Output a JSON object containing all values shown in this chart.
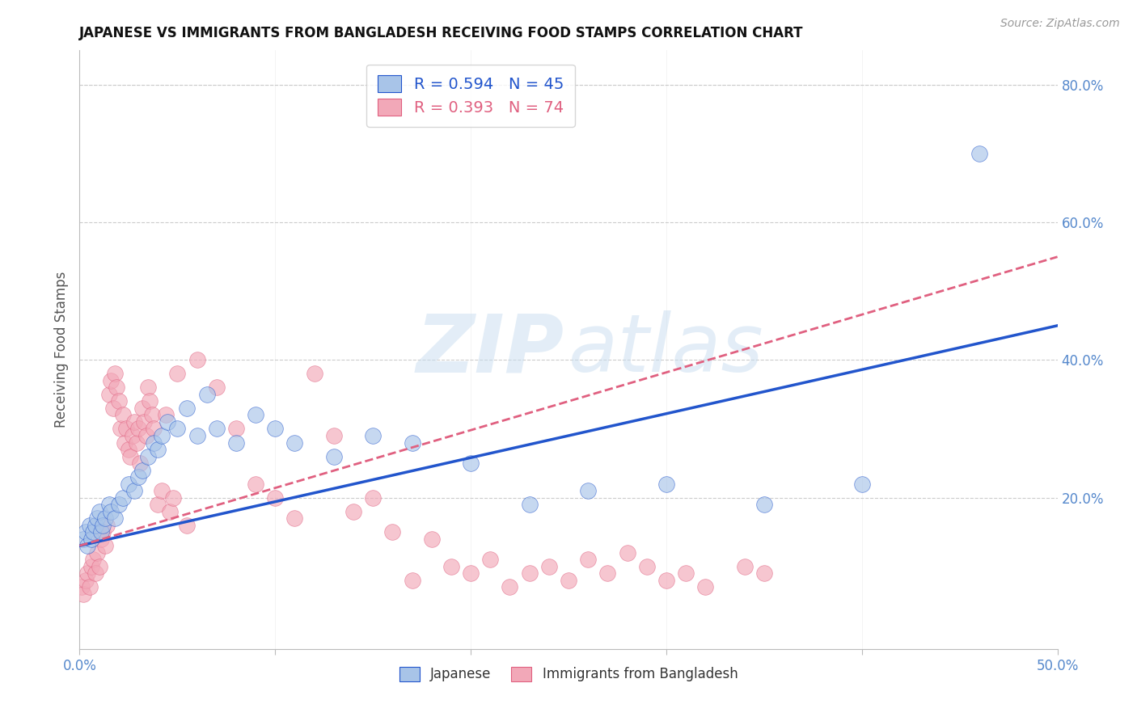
{
  "title": "JAPANESE VS IMMIGRANTS FROM BANGLADESH RECEIVING FOOD STAMPS CORRELATION CHART",
  "source": "Source: ZipAtlas.com",
  "ylabel": "Receiving Food Stamps",
  "legend_label_blue": "Japanese",
  "legend_label_pink": "Immigrants from Bangladesh",
  "R_blue": 0.594,
  "N_blue": 45,
  "R_pink": 0.393,
  "N_pink": 74,
  "xlim": [
    0.0,
    0.5
  ],
  "ylim": [
    -0.02,
    0.85
  ],
  "yticks_right": [
    0.2,
    0.4,
    0.6,
    0.8
  ],
  "xtick_positions": [
    0.0,
    0.1,
    0.2,
    0.3,
    0.4,
    0.5
  ],
  "xtick_labels_show": {
    "0.0": "0.0%",
    "0.1": "",
    "0.2": "",
    "0.3": "",
    "0.4": "",
    "0.5": "50.0%"
  },
  "color_blue": "#a8c4e8",
  "color_pink": "#f2a8b8",
  "line_blue": "#2255cc",
  "line_pink": "#e06080",
  "bg_color": "#ffffff",
  "grid_color": "#cccccc",
  "blue_x": [
    0.002,
    0.003,
    0.004,
    0.005,
    0.006,
    0.007,
    0.008,
    0.009,
    0.01,
    0.011,
    0.012,
    0.013,
    0.015,
    0.016,
    0.018,
    0.02,
    0.022,
    0.025,
    0.028,
    0.03,
    0.032,
    0.035,
    0.038,
    0.04,
    0.042,
    0.045,
    0.05,
    0.055,
    0.06,
    0.065,
    0.07,
    0.08,
    0.09,
    0.1,
    0.11,
    0.13,
    0.15,
    0.17,
    0.2,
    0.23,
    0.26,
    0.3,
    0.35,
    0.4,
    0.46
  ],
  "blue_y": [
    0.14,
    0.15,
    0.13,
    0.16,
    0.14,
    0.15,
    0.16,
    0.17,
    0.18,
    0.15,
    0.16,
    0.17,
    0.19,
    0.18,
    0.17,
    0.19,
    0.2,
    0.22,
    0.21,
    0.23,
    0.24,
    0.26,
    0.28,
    0.27,
    0.29,
    0.31,
    0.3,
    0.33,
    0.29,
    0.35,
    0.3,
    0.28,
    0.32,
    0.3,
    0.28,
    0.26,
    0.29,
    0.28,
    0.25,
    0.19,
    0.21,
    0.22,
    0.19,
    0.22,
    0.7
  ],
  "pink_x": [
    0.001,
    0.002,
    0.003,
    0.004,
    0.005,
    0.006,
    0.007,
    0.008,
    0.009,
    0.01,
    0.011,
    0.012,
    0.013,
    0.014,
    0.015,
    0.016,
    0.017,
    0.018,
    0.019,
    0.02,
    0.021,
    0.022,
    0.023,
    0.024,
    0.025,
    0.026,
    0.027,
    0.028,
    0.029,
    0.03,
    0.031,
    0.032,
    0.033,
    0.034,
    0.035,
    0.036,
    0.037,
    0.038,
    0.04,
    0.042,
    0.044,
    0.046,
    0.048,
    0.05,
    0.055,
    0.06,
    0.07,
    0.08,
    0.09,
    0.1,
    0.11,
    0.12,
    0.13,
    0.14,
    0.15,
    0.16,
    0.17,
    0.18,
    0.19,
    0.2,
    0.21,
    0.22,
    0.23,
    0.24,
    0.25,
    0.26,
    0.27,
    0.28,
    0.29,
    0.3,
    0.31,
    0.32,
    0.34,
    0.35
  ],
  "pink_y": [
    0.07,
    0.06,
    0.08,
    0.09,
    0.07,
    0.1,
    0.11,
    0.09,
    0.12,
    0.1,
    0.14,
    0.15,
    0.13,
    0.16,
    0.35,
    0.37,
    0.33,
    0.38,
    0.36,
    0.34,
    0.3,
    0.32,
    0.28,
    0.3,
    0.27,
    0.26,
    0.29,
    0.31,
    0.28,
    0.3,
    0.25,
    0.33,
    0.31,
    0.29,
    0.36,
    0.34,
    0.32,
    0.3,
    0.19,
    0.21,
    0.32,
    0.18,
    0.2,
    0.38,
    0.16,
    0.4,
    0.36,
    0.3,
    0.22,
    0.2,
    0.17,
    0.38,
    0.29,
    0.18,
    0.2,
    0.15,
    0.08,
    0.14,
    0.1,
    0.09,
    0.11,
    0.07,
    0.09,
    0.1,
    0.08,
    0.11,
    0.09,
    0.12,
    0.1,
    0.08,
    0.09,
    0.07,
    0.1,
    0.09
  ]
}
